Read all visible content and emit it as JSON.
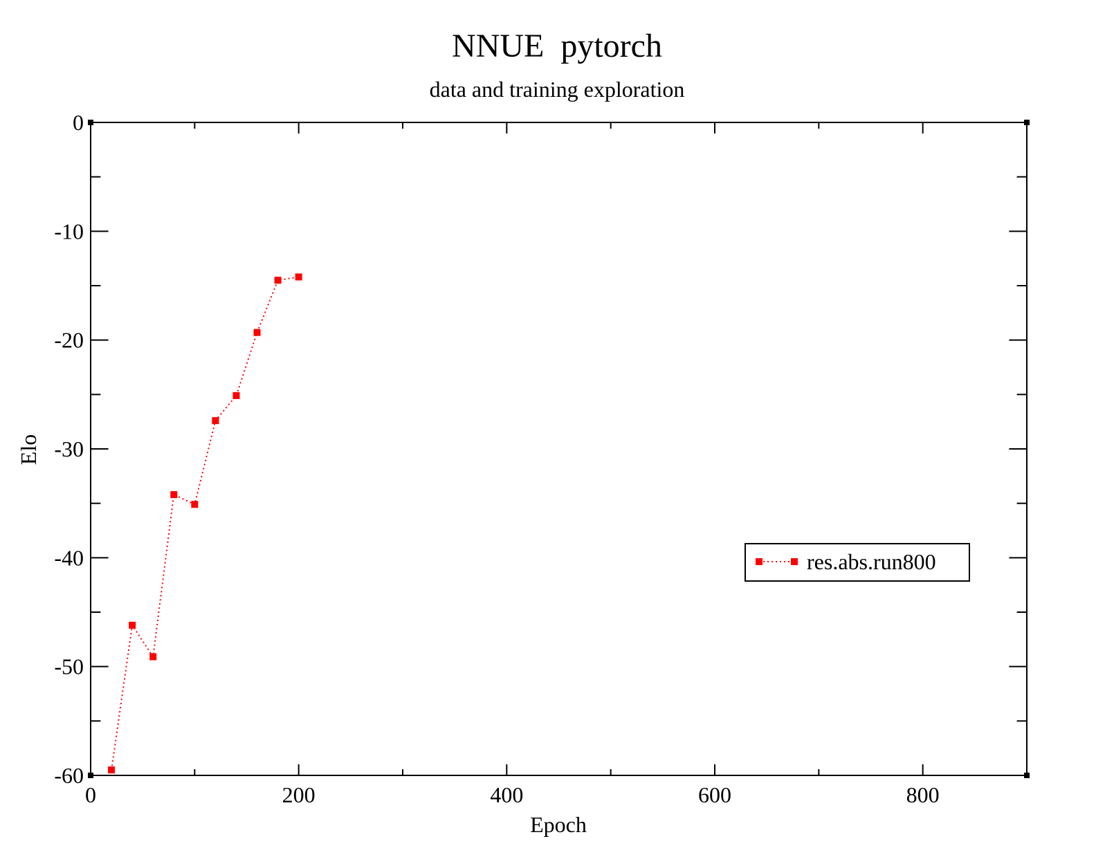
{
  "chart_data": {
    "type": "line",
    "title": "NNUE  pytorch",
    "subtitle": "data and training exploration",
    "xlabel": "Epoch",
    "ylabel": "Elo",
    "xlim": [
      0,
      900
    ],
    "ylim": [
      -60,
      0
    ],
    "x_ticks_major": [
      0,
      200,
      400,
      600,
      800
    ],
    "x_tick_labels": [
      "0",
      "200",
      "400",
      "600",
      "800"
    ],
    "x_ticks_minor": [
      100,
      300,
      500,
      700
    ],
    "y_ticks_major": [
      0,
      -10,
      -20,
      -30,
      -40,
      -50,
      -60
    ],
    "y_tick_labels": [
      "0",
      "-10",
      "-20",
      "-30",
      "-40",
      "-50",
      "-60"
    ],
    "y_ticks_minor": [
      -5,
      -15,
      -25,
      -35,
      -45,
      -55
    ],
    "grid": false,
    "legend_position": "right",
    "series": [
      {
        "name": "res.abs.run800",
        "color": "#ff0000",
        "line_style": "dotted",
        "marker": "square",
        "x": [
          20,
          40,
          60,
          80,
          100,
          120,
          140,
          160,
          180,
          200
        ],
        "y": [
          -59.5,
          -46.2,
          -49.1,
          -34.2,
          -35.1,
          -27.4,
          -25.1,
          -19.3,
          -14.5,
          -14.2
        ]
      }
    ]
  }
}
